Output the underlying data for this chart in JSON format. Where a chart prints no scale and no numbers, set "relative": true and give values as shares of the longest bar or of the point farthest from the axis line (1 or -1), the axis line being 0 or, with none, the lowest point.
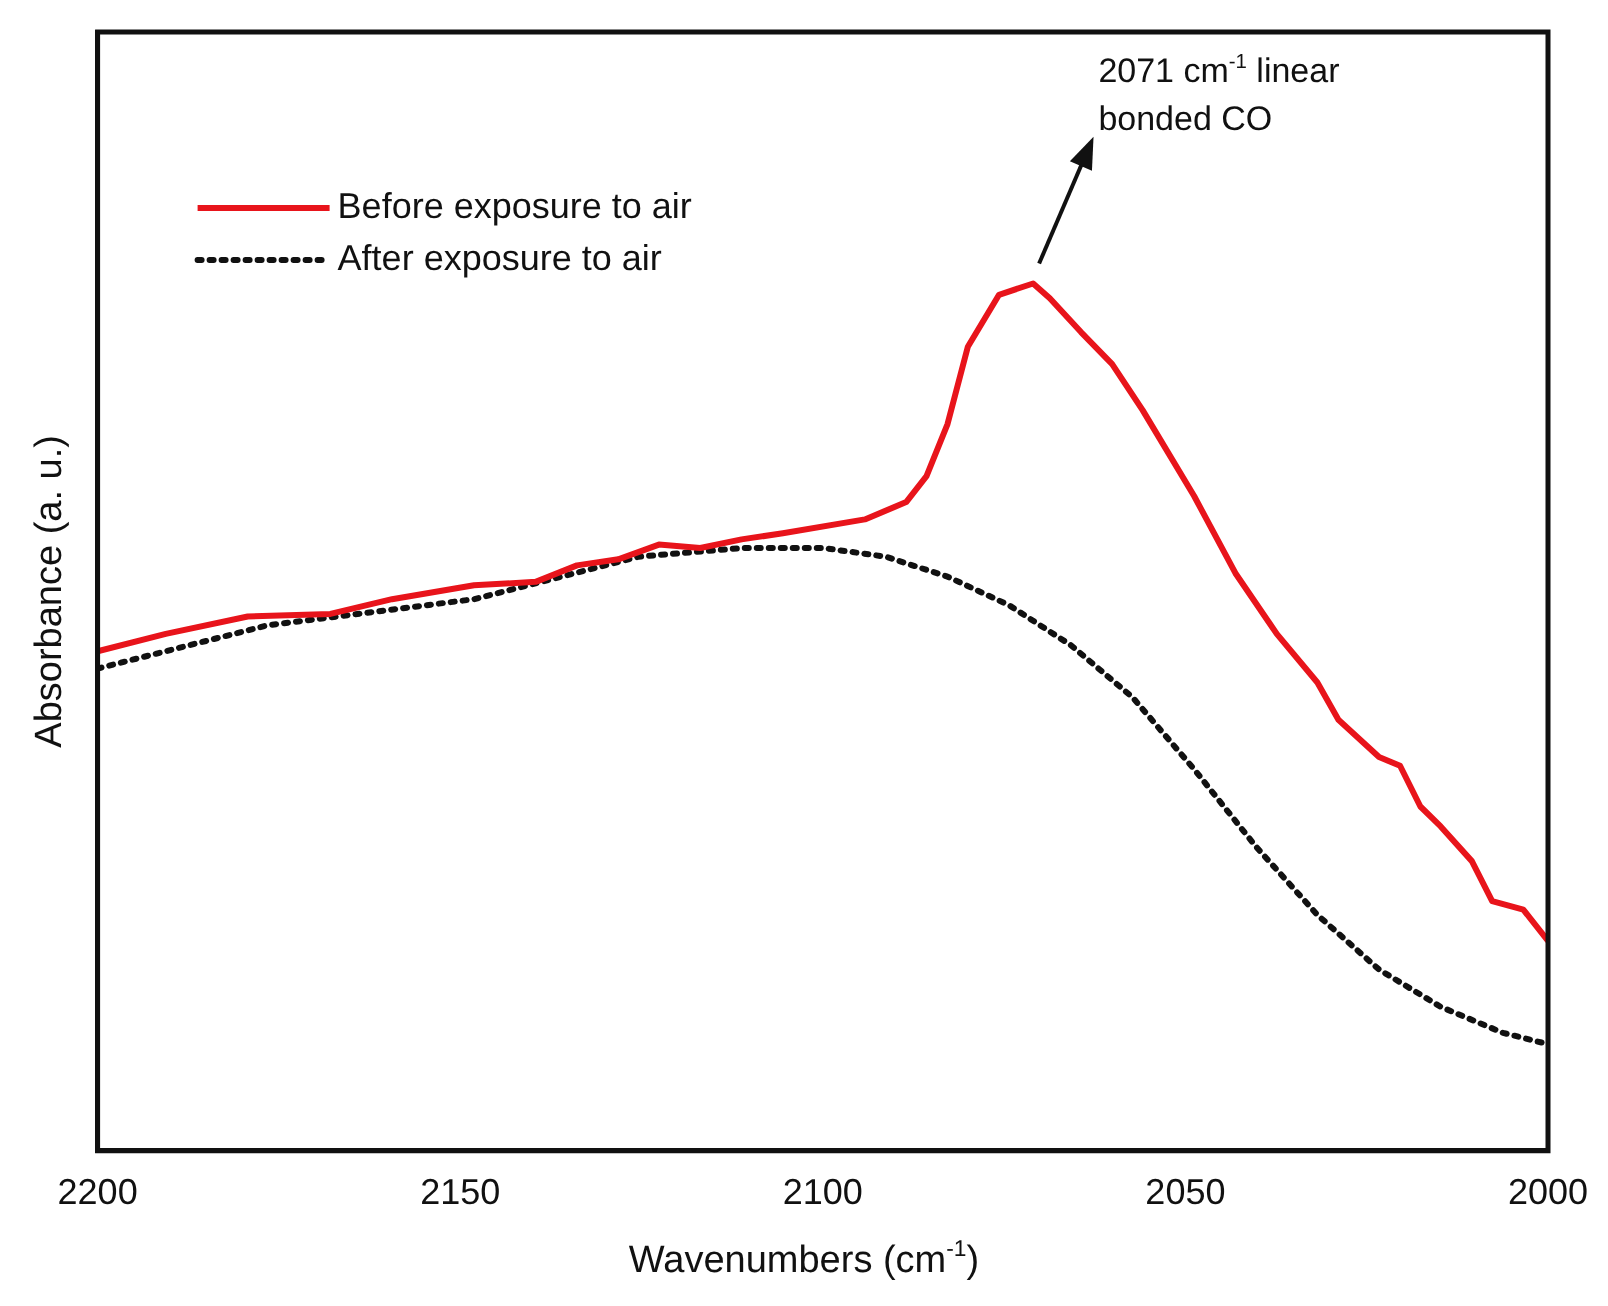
{
  "chart_data": {
    "type": "line",
    "xlabel": "Wavenumbers (cm$^{-1}$)",
    "ylabel": "Absorbance (a. u.)",
    "relative": true,
    "xlim": [
      2200,
      2000
    ],
    "xticks": [
      2200,
      2150,
      2100,
      2050,
      2000
    ],
    "grid": false,
    "legend": "top left",
    "marker": "none",
    "series": [
      {
        "name": "Before exposure to air",
        "color": "#e8141b",
        "line_style": "solid",
        "x": [
          2200,
          2190.6,
          2179.3,
          2167.9,
          2159.4,
          2148.1,
          2139.6,
          2133.9,
          2128.2,
          2122.6,
          2116.9,
          2111.2,
          2105.5,
          2094.2,
          2088.5,
          2085.7,
          2082.8,
          2080,
          2075.7,
          2071,
          2068.7,
          2064.4,
          2060.1,
          2055.9,
          2048.8,
          2043.1,
          2037.4,
          2031.8,
          2028.9,
          2023.3,
          2020.4,
          2017.6,
          2014.8,
          2010.5,
          2007.7,
          2003.4,
          2000
        ],
        "values": [
          0.576,
          0.596,
          0.616,
          0.619,
          0.636,
          0.652,
          0.656,
          0.675,
          0.682,
          0.699,
          0.695,
          0.705,
          0.712,
          0.728,
          0.748,
          0.778,
          0.838,
          0.927,
          0.987,
          1.0,
          0.983,
          0.944,
          0.907,
          0.854,
          0.755,
          0.666,
          0.596,
          0.54,
          0.497,
          0.454,
          0.444,
          0.397,
          0.374,
          0.334,
          0.288,
          0.278,
          0.242
        ]
      },
      {
        "name": "After exposure to air",
        "color": "#111111",
        "line_style": "dotted",
        "x": [
          2200,
          2176.5,
          2148.1,
          2125.4,
          2111.2,
          2099.9,
          2091.3,
          2082.8,
          2074.3,
          2065.8,
          2057.3,
          2048.8,
          2040.3,
          2031.8,
          2023.3,
          2014.8,
          2006.2,
          2000
        ],
        "values": [
          0.556,
          0.606,
          0.636,
          0.685,
          0.695,
          0.695,
          0.685,
          0.662,
          0.629,
          0.583,
          0.523,
          0.44,
          0.351,
          0.272,
          0.209,
          0.166,
          0.136,
          0.123
        ]
      }
    ],
    "annotations": [
      "2071 cm$^{-1}$ linear bonded CO"
    ]
  }
}
